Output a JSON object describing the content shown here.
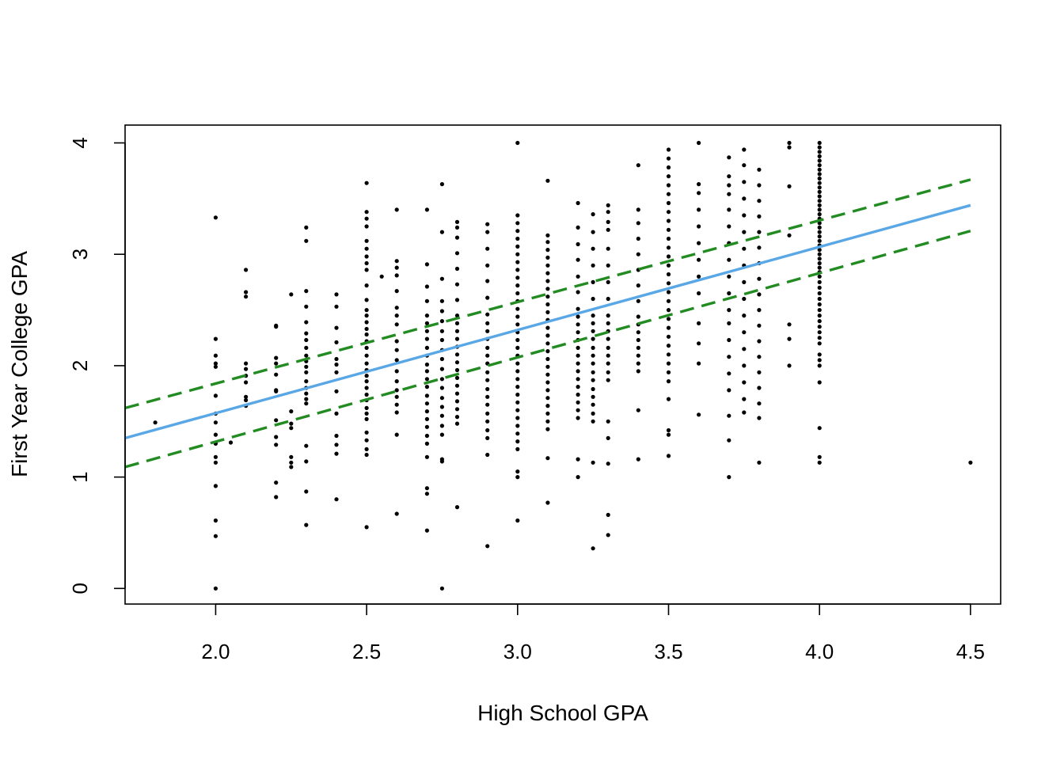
{
  "chart_data": {
    "type": "scatter",
    "title": "",
    "xlabel": "High School GPA",
    "ylabel": "First Year College GPA",
    "xlim": [
      1.7,
      4.6
    ],
    "ylim": [
      -0.14,
      4.16
    ],
    "xticks": [
      "2.0",
      "2.5",
      "3.0",
      "3.5",
      "4.0",
      "4.5"
    ],
    "xtick_values": [
      2.0,
      2.5,
      3.0,
      3.5,
      4.0,
      4.5
    ],
    "yticks": [
      "0",
      "1",
      "2",
      "3",
      "4"
    ],
    "ytick_values": [
      0,
      1,
      2,
      3,
      4
    ],
    "grid": false,
    "points": {
      "color": "#000000",
      "columns": [
        {
          "x": 1.8,
          "y": [
            1.49
          ]
        },
        {
          "x": 2.0,
          "y": [
            3.33,
            2.24,
            2.09,
            2.02,
            1.99,
            1.73,
            1.57,
            1.49,
            1.38,
            1.3,
            1.18,
            1.13,
            0.92,
            0.61,
            0.47,
            0.0
          ]
        },
        {
          "x": 2.05,
          "y": [
            1.31
          ]
        },
        {
          "x": 2.1,
          "y": [
            2.86,
            2.66,
            2.62,
            2.02,
            1.97,
            1.91,
            1.85,
            1.72,
            1.69,
            1.64
          ]
        },
        {
          "x": 2.2,
          "y": [
            2.36,
            2.35,
            2.07,
            2.02,
            1.92,
            1.78,
            1.77,
            1.51,
            1.36,
            1.29,
            0.95,
            0.82
          ]
        },
        {
          "x": 2.25,
          "y": [
            2.64,
            1.59,
            1.48,
            1.44,
            1.18,
            1.13,
            1.09
          ]
        },
        {
          "x": 2.3,
          "y": [
            3.24,
            3.12,
            2.67,
            2.53,
            2.39,
            2.29,
            2.23,
            2.16,
            2.09,
            2.04,
            1.99,
            1.94,
            1.86,
            1.8,
            1.75,
            1.7,
            1.66,
            1.28,
            1.14,
            0.87,
            0.57
          ]
        },
        {
          "x": 2.4,
          "y": [
            2.64,
            2.53,
            2.34,
            2.21,
            2.06,
            2.01,
            1.94,
            1.77,
            1.57,
            1.37,
            1.29,
            1.21,
            0.8
          ]
        },
        {
          "x": 2.5,
          "y": [
            3.64,
            3.38,
            3.32,
            3.25,
            3.12,
            3.05,
            2.98,
            2.92,
            2.86,
            2.72,
            2.59,
            2.5,
            2.45,
            2.39,
            2.33,
            2.28,
            2.22,
            2.16,
            2.09,
            2.02,
            1.96,
            1.91,
            1.86,
            1.8,
            1.74,
            1.69,
            1.62,
            1.57,
            1.52,
            1.4,
            1.33,
            1.25,
            1.2,
            0.55
          ]
        },
        {
          "x": 2.55,
          "y": [
            2.8
          ]
        },
        {
          "x": 2.6,
          "y": [
            3.4,
            2.94,
            2.88,
            2.81,
            2.67,
            2.52,
            2.45,
            2.37,
            2.22,
            2.14,
            2.05,
            1.95,
            1.86,
            1.78,
            1.72,
            1.65,
            1.58,
            1.38,
            0.67
          ]
        },
        {
          "x": 2.7,
          "y": [
            3.4,
            2.91,
            2.71,
            2.58,
            2.45,
            2.38,
            2.31,
            2.24,
            2.16,
            2.09,
            2.01,
            1.95,
            1.88,
            1.81,
            1.73,
            1.66,
            1.59,
            1.52,
            1.45,
            1.37,
            1.3,
            1.18,
            0.9,
            0.85,
            0.52
          ]
        },
        {
          "x": 2.75,
          "y": [
            3.63,
            3.2,
            2.78,
            2.58,
            2.49,
            2.4,
            2.31,
            2.23,
            2.14,
            2.06,
            1.97,
            1.88,
            1.8,
            1.71,
            1.63,
            1.55,
            1.46,
            1.38,
            1.16,
            1.14,
            0.0
          ]
        },
        {
          "x": 2.8,
          "y": [
            3.29,
            3.24,
            3.15,
            3.01,
            2.87,
            2.73,
            2.59,
            2.45,
            2.38,
            2.31,
            2.24,
            2.17,
            2.1,
            2.03,
            1.96,
            1.89,
            1.82,
            1.75,
            1.68,
            1.61,
            1.54,
            1.48,
            0.73
          ]
        },
        {
          "x": 2.9,
          "y": [
            3.27,
            3.2,
            3.05,
            2.9,
            2.76,
            2.61,
            2.46,
            2.38,
            2.31,
            2.24,
            2.16,
            2.09,
            2.02,
            1.94,
            1.87,
            1.79,
            1.72,
            1.65,
            1.57,
            1.5,
            1.42,
            1.35,
            1.2,
            0.38
          ]
        },
        {
          "x": 3.0,
          "y": [
            4.0,
            3.35,
            3.28,
            3.21,
            3.14,
            3.07,
            3.0,
            2.93,
            2.86,
            2.79,
            2.72,
            2.65,
            2.58,
            2.51,
            2.44,
            2.37,
            2.3,
            2.23,
            2.16,
            2.09,
            2.02,
            1.95,
            1.88,
            1.81,
            1.74,
            1.67,
            1.6,
            1.53,
            1.46,
            1.39,
            1.32,
            1.25,
            1.05,
            1.0,
            0.61
          ]
        },
        {
          "x": 3.1,
          "y": [
            3.66,
            3.17,
            3.11,
            3.04,
            2.97,
            2.9,
            2.83,
            2.76,
            2.69,
            2.62,
            2.55,
            2.48,
            2.41,
            2.34,
            2.27,
            2.2,
            2.13,
            2.06,
            1.99,
            1.92,
            1.85,
            1.78,
            1.71,
            1.64,
            1.57,
            1.5,
            1.43,
            1.17,
            0.77
          ]
        },
        {
          "x": 3.2,
          "y": [
            3.46,
            3.24,
            3.09,
            2.95,
            2.8,
            2.66,
            2.51,
            2.44,
            2.37,
            2.3,
            2.23,
            2.16,
            2.09,
            2.02,
            1.95,
            1.88,
            1.81,
            1.74,
            1.67,
            1.6,
            1.53,
            1.16,
            1.0
          ]
        },
        {
          "x": 3.25,
          "y": [
            3.36,
            3.2,
            3.05,
            2.9,
            2.75,
            2.6,
            2.45,
            2.38,
            2.31,
            2.24,
            2.16,
            2.09,
            2.02,
            1.94,
            1.87,
            1.79,
            1.72,
            1.65,
            1.57,
            1.5,
            1.13,
            0.36
          ]
        },
        {
          "x": 3.3,
          "y": [
            3.44,
            3.38,
            3.29,
            3.22,
            3.05,
            2.9,
            2.75,
            2.6,
            2.45,
            2.38,
            2.31,
            2.24,
            2.16,
            2.09,
            2.02,
            1.94,
            1.87,
            1.5,
            1.35,
            1.12,
            0.66,
            0.48
          ]
        },
        {
          "x": 3.4,
          "y": [
            3.8,
            3.4,
            3.28,
            3.14,
            3.0,
            2.86,
            2.72,
            2.58,
            2.44,
            2.37,
            2.3,
            2.23,
            2.16,
            2.09,
            2.02,
            1.95,
            1.6,
            1.16
          ]
        },
        {
          "x": 3.5,
          "y": [
            3.94,
            3.86,
            3.78,
            3.7,
            3.62,
            3.54,
            3.46,
            3.38,
            3.3,
            3.22,
            3.14,
            3.06,
            2.98,
            2.9,
            2.82,
            2.74,
            2.66,
            2.58,
            2.5,
            2.42,
            2.34,
            2.26,
            2.18,
            2.1,
            2.02,
            1.94,
            1.86,
            1.7,
            1.42,
            1.38,
            1.19
          ]
        },
        {
          "x": 3.6,
          "y": [
            4.0,
            3.63,
            3.55,
            3.4,
            3.25,
            3.1,
            2.95,
            2.8,
            2.65,
            2.38,
            2.2,
            2.02,
            1.56
          ]
        },
        {
          "x": 3.7,
          "y": [
            3.87,
            3.7,
            3.62,
            3.54,
            3.4,
            3.25,
            3.1,
            2.95,
            2.8,
            2.65,
            2.5,
            2.38,
            2.23,
            2.08,
            1.93,
            1.78,
            1.55,
            1.33,
            1.0
          ]
        },
        {
          "x": 3.75,
          "y": [
            3.94,
            3.8,
            3.65,
            3.5,
            3.35,
            3.2,
            3.05,
            2.9,
            2.75,
            2.6,
            2.45,
            2.3,
            2.15,
            2.0,
            1.85,
            1.7,
            1.58
          ]
        },
        {
          "x": 3.8,
          "y": [
            3.76,
            3.62,
            3.48,
            3.34,
            3.2,
            3.06,
            2.92,
            2.78,
            2.64,
            2.5,
            2.36,
            2.22,
            2.08,
            1.94,
            1.8,
            1.66,
            1.53,
            1.13
          ]
        },
        {
          "x": 3.9,
          "y": [
            4.0,
            3.96,
            3.61,
            3.17,
            2.37,
            2.24,
            2.0
          ]
        },
        {
          "x": 4.0,
          "y": [
            4.0,
            3.96,
            3.92,
            3.88,
            3.84,
            3.8,
            3.76,
            3.72,
            3.68,
            3.64,
            3.6,
            3.56,
            3.52,
            3.48,
            3.44,
            3.4,
            3.36,
            3.32,
            3.28,
            3.24,
            3.2,
            3.16,
            3.12,
            3.08,
            3.04,
            3.0,
            2.96,
            2.92,
            2.88,
            2.84,
            2.8,
            2.75,
            2.7,
            2.65,
            2.6,
            2.55,
            2.5,
            2.45,
            2.4,
            2.35,
            2.3,
            2.25,
            2.2,
            2.1,
            2.05,
            2.0,
            1.85,
            1.44,
            1.18,
            1.13
          ]
        },
        {
          "x": 4.5,
          "y": [
            1.13
          ]
        }
      ]
    },
    "series": [
      {
        "type": "regression-line",
        "style": "solid",
        "color": "#5aa7e6",
        "x": [
          1.7,
          4.5
        ],
        "y": [
          1.35,
          3.44
        ]
      },
      {
        "type": "upper-band",
        "style": "dashed",
        "color": "#228b22",
        "x": [
          1.7,
          4.5
        ],
        "y": [
          1.62,
          3.67
        ]
      },
      {
        "type": "lower-band",
        "style": "dashed",
        "color": "#228b22",
        "x": [
          1.7,
          4.5
        ],
        "y": [
          1.09,
          3.21
        ]
      }
    ]
  }
}
